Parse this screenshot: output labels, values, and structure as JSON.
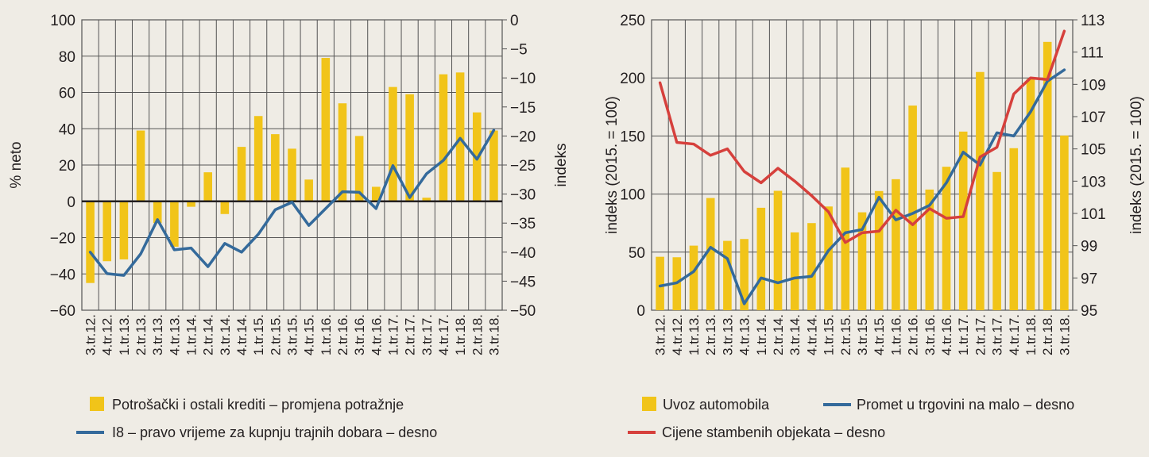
{
  "colors": {
    "bar": "#f1c419",
    "blue": "#346a9b",
    "red": "#d6403c",
    "grid": "#3a3a3a",
    "background": "#efece5"
  },
  "chart_data": [
    {
      "type": "bar+line",
      "categories": [
        "3.tr.12.",
        "4.tr.12.",
        "1.tr.13.",
        "2.tr.13.",
        "3.tr.13.",
        "4.tr.13.",
        "1.tr.14.",
        "2.tr.14.",
        "3.tr.14.",
        "4.tr.14.",
        "1.tr.15.",
        "2.tr.15.",
        "3.tr.15.",
        "4.tr.15.",
        "1.tr.16.",
        "2.tr.16.",
        "3.tr.16.",
        "4.tr.16.",
        "1.tr.17.",
        "2.tr.17.",
        "3.tr.17.",
        "4.tr.17.",
        "1.tr.18.",
        "2.tr.18.",
        "3.tr.18."
      ],
      "ylabel": "% neto",
      "y2label": "indeks",
      "ylim": [
        -60,
        100
      ],
      "yticks": [
        100,
        80,
        60,
        40,
        20,
        0,
        -20,
        -40,
        -60
      ],
      "y2lim": [
        -50,
        0
      ],
      "y2ticks": [
        0,
        -5,
        -10,
        -15,
        -20,
        -25,
        -30,
        -35,
        -40,
        -45,
        -50
      ],
      "grid": true,
      "series": [
        {
          "name": "Potrošački i ostali krediti – promjena potražnje",
          "type": "bar",
          "axis": "left",
          "values": [
            -45,
            -33,
            -32,
            39,
            -12,
            -25,
            -3,
            16,
            -7,
            30,
            47,
            37,
            29,
            12,
            79,
            54,
            36,
            8,
            63,
            59,
            2,
            70,
            71,
            49,
            39
          ]
        },
        {
          "name": "I8 – pravo vrijeme za kupnju trajnih dobara – desno",
          "type": "line",
          "axis": "right",
          "values": [
            -40,
            -43.7,
            -44,
            -40.3,
            -34.4,
            -39.6,
            -39.3,
            -42.5,
            -38.5,
            -40,
            -36.9,
            -32.7,
            -31.4,
            -35.4,
            -32.5,
            -29.6,
            -29.7,
            -32.5,
            -25.1,
            -30.6,
            -26.5,
            -24.2,
            -20.4,
            -24,
            -19
          ]
        }
      ],
      "legend": "bottom"
    },
    {
      "type": "bar+line",
      "categories": [
        "3.tr.12.",
        "4.tr.12.",
        "1.tr.13.",
        "2.tr.13.",
        "3.tr.13.",
        "4.tr.13.",
        "1.tr.14.",
        "2.tr.14.",
        "3.tr.14.",
        "4.tr.14.",
        "1.tr.15.",
        "2.tr.15.",
        "3.tr.15.",
        "4.tr.15.",
        "1.tr.16.",
        "2.tr.16.",
        "3.tr.16.",
        "4.tr.16.",
        "1.tr.17.",
        "2.tr.17.",
        "3.tr.17.",
        "4.tr.17.",
        "1.tr.18.",
        "2.tr.18.",
        "3.tr.18."
      ],
      "ylabel": "indeks (2015. = 100)",
      "y2label": "indeks (2015. = 100)",
      "ylim": [
        0,
        250
      ],
      "yticks": [
        250,
        200,
        150,
        100,
        50,
        0
      ],
      "y2lim": [
        95,
        113
      ],
      "y2ticks": [
        113,
        111,
        109,
        107,
        105,
        103,
        101,
        99,
        97,
        95
      ],
      "grid": true,
      "series": [
        {
          "name": "Uvoz automobila",
          "type": "bar",
          "axis": "left",
          "values": [
            46,
            45.6,
            55.6,
            96.6,
            59.7,
            61.3,
            88.2,
            102.8,
            67,
            75,
            89.3,
            122.8,
            84.3,
            102.6,
            112.8,
            176.2,
            103.9,
            123.5,
            153.8,
            205.1,
            119,
            139.5,
            199,
            231,
            150.4
          ]
        },
        {
          "name": "Promet u trgovini na malo – desno",
          "type": "line",
          "axis": "right",
          "values": [
            96.5,
            96.7,
            97.4,
            98.9,
            98.2,
            95.4,
            97.0,
            96.7,
            97.0,
            97.1,
            98.7,
            99.8,
            100.0,
            102.0,
            100.6,
            101.0,
            101.5,
            102.9,
            104.8,
            104.0,
            106.0,
            105.8,
            107.3,
            109.2,
            109.9
          ]
        },
        {
          "name": "Cijene stambenih objekata – desno",
          "type": "line",
          "axis": "right",
          "values": [
            109.1,
            105.4,
            105.3,
            104.6,
            105.0,
            103.6,
            102.9,
            103.8,
            103.0,
            102.1,
            101.1,
            99.2,
            99.8,
            99.9,
            101.2,
            100.3,
            101.3,
            100.7,
            100.8,
            104.5,
            105.1,
            108.4,
            109.4,
            109.3,
            112.3
          ]
        }
      ],
      "legend": "bottom"
    }
  ]
}
